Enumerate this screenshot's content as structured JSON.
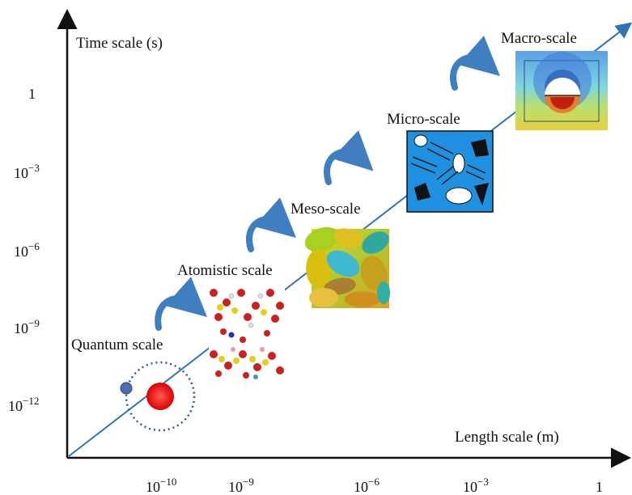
{
  "axes": {
    "y_title": "Time scale (s)",
    "x_title": "Length scale (m)",
    "y_ticks": [
      {
        "base": "1",
        "exp": ""
      },
      {
        "base": "10",
        "exp": "−3"
      },
      {
        "base": "10",
        "exp": "−6"
      },
      {
        "base": "10",
        "exp": "−9"
      },
      {
        "base": "10",
        "exp": "−12"
      }
    ],
    "x_ticks": [
      {
        "base": "10",
        "exp": "−10"
      },
      {
        "base": "10",
        "exp": "−9"
      },
      {
        "base": "10",
        "exp": "−6"
      },
      {
        "base": "10",
        "exp": "−3"
      },
      {
        "base": "1",
        "exp": ""
      }
    ]
  },
  "scales": [
    {
      "label": "Quantum scale"
    },
    {
      "label": "Atomistic scale"
    },
    {
      "label": "Meso-scale"
    },
    {
      "label": "Micro-scale"
    },
    {
      "label": "Macro-scale"
    }
  ],
  "colors": {
    "axis": "#111111",
    "diagonal": "#2e75b6",
    "curved_arrow": "#3f7fbf",
    "nucleus": "#ee0000",
    "electron": "#4a6fb5",
    "micro_bg": "#1f8fe0"
  }
}
